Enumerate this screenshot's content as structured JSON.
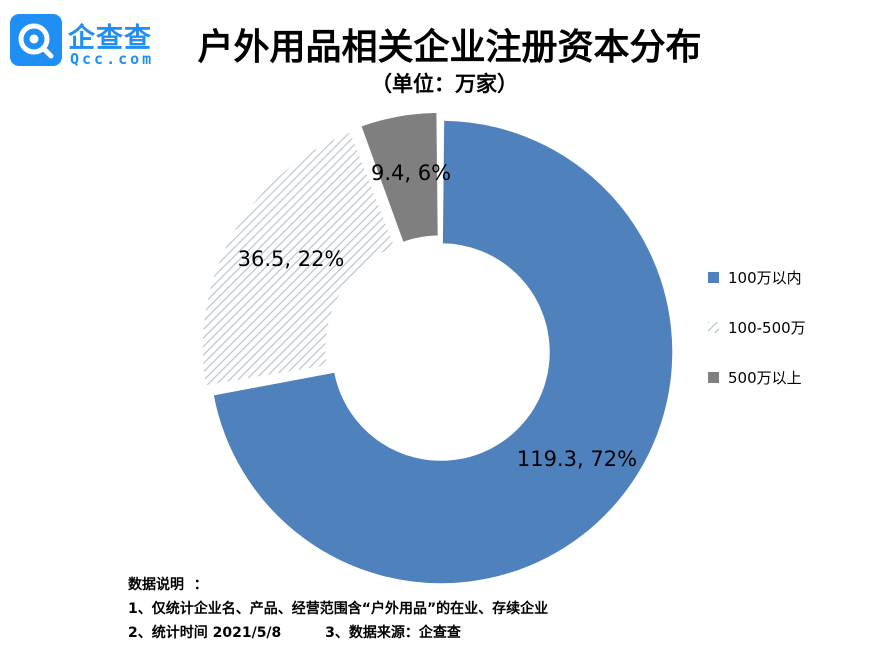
{
  "logo": {
    "text": "企查查",
    "sub": "Qcc.com",
    "brand_color": "#1f8ff4"
  },
  "title": "户外用品相关企业注册资本分布",
  "subtitle": "（单位：万家）",
  "chart_data": {
    "type": "donut",
    "title": "户外用品相关企业注册资本分布",
    "subtitle": "（单位：万家）",
    "slices": [
      {
        "name": "100万以内",
        "value": 119.3,
        "percent": 72,
        "label": "119.3, 72%",
        "color": "#4f81bd",
        "pattern": "solid"
      },
      {
        "name": "100-500万",
        "value": 36.5,
        "percent": 22,
        "label": "36.5, 22%",
        "color": "#c8cfd6",
        "pattern": "diagonal-stripes"
      },
      {
        "name": "500万以上",
        "value": 9.4,
        "percent": 6,
        "label": "9.4, 6%",
        "color": "#7f7f7f",
        "pattern": "solid"
      }
    ],
    "legend_position": "right"
  },
  "notes": {
    "heading": "数据说明  ：",
    "line1": "1、仅统计企业名、产品、经营范围含“户外用品”的在业、存续企业",
    "line2": "2、统计时间 2021/5/8         3、数据来源：企查查"
  }
}
